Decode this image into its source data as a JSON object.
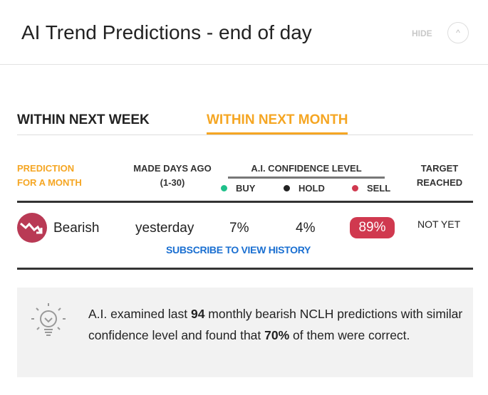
{
  "header": {
    "title": "AI Trend Predictions - end of day",
    "hide_label": "HIDE",
    "collapse_icon": "chevron-up-icon"
  },
  "tabs": [
    {
      "label": "WITHIN NEXT WEEK",
      "active": false
    },
    {
      "label": "WITHIN NEXT MONTH",
      "active": true
    }
  ],
  "table": {
    "headers": {
      "prediction_line1": "PREDICTION",
      "prediction_line2": "FOR A MONTH",
      "made_line1": "MADE DAYS AGO",
      "made_line2": "(1-30)",
      "confidence": "A.I. CONFIDENCE LEVEL",
      "buy": "BUY",
      "hold": "HOLD",
      "sell": "SELL",
      "target_line1": "TARGET",
      "target_line2": "REACHED"
    },
    "row": {
      "prediction": "Bearish",
      "made": "yesterday",
      "buy": "7%",
      "hold": "4%",
      "sell": "89%",
      "target": "NOT YET"
    },
    "subscribe_link": "SUBSCRIBE TO VIEW HISTORY"
  },
  "insight": {
    "p1": "A.I. examined last ",
    "count": "94",
    "p2": " monthly bearish NCLH predictions with similar confidence level and found that ",
    "pct": "70%",
    "p3": " of them were correct.",
    "icon": "lightbulb-icon"
  },
  "colors": {
    "accent": "#f5a623",
    "buy": "#1fc08a",
    "hold": "#222222",
    "sell": "#d0394f",
    "link": "#1a6fd1",
    "bearish": "#b93a55"
  }
}
